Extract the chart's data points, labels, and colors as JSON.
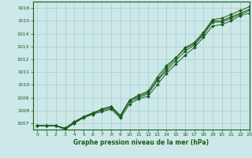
{
  "title": "Graphe pression niveau de la mer (hPa)",
  "background_color": "#cce8e8",
  "grid_color": "#aacccc",
  "line_color": "#1a5c1a",
  "marker_color": "#1a5c1a",
  "xlim": [
    -0.5,
    23
  ],
  "ylim": [
    1006.5,
    1016.5
  ],
  "yticks": [
    1007,
    1008,
    1009,
    1010,
    1011,
    1012,
    1013,
    1014,
    1015,
    1016
  ],
  "xticks": [
    0,
    1,
    2,
    3,
    4,
    5,
    6,
    7,
    8,
    9,
    10,
    11,
    12,
    13,
    14,
    15,
    16,
    17,
    18,
    19,
    20,
    21,
    22,
    23
  ],
  "series": [
    [
      1006.8,
      1006.8,
      1006.8,
      1006.6,
      1007.0,
      1007.5,
      1007.7,
      1008.1,
      1008.3,
      1007.6,
      1008.8,
      1009.2,
      1009.5,
      1010.6,
      1011.5,
      1012.1,
      1012.9,
      1013.3,
      1014.1,
      1015.1,
      1015.2,
      1015.5,
      1015.8,
      1016.1
    ],
    [
      1006.8,
      1006.8,
      1006.8,
      1006.6,
      1007.1,
      1007.5,
      1007.8,
      1008.1,
      1008.3,
      1007.6,
      1008.8,
      1009.1,
      1009.4,
      1010.4,
      1011.3,
      1012.1,
      1012.8,
      1013.2,
      1014.0,
      1015.0,
      1015.0,
      1015.3,
      1015.6,
      1015.9
    ],
    [
      1006.8,
      1006.8,
      1006.8,
      1006.6,
      1007.1,
      1007.5,
      1007.8,
      1008.0,
      1008.2,
      1007.5,
      1008.7,
      1009.0,
      1009.3,
      1010.3,
      1011.1,
      1011.9,
      1012.6,
      1013.1,
      1013.9,
      1014.9,
      1014.9,
      1015.2,
      1015.5,
      1015.8
    ],
    [
      1006.8,
      1006.8,
      1006.8,
      1006.5,
      1007.0,
      1007.4,
      1007.7,
      1007.9,
      1008.1,
      1007.4,
      1008.5,
      1008.9,
      1009.1,
      1010.0,
      1010.9,
      1011.6,
      1012.3,
      1012.9,
      1013.7,
      1014.6,
      1014.7,
      1015.0,
      1015.4,
      1015.6
    ]
  ]
}
